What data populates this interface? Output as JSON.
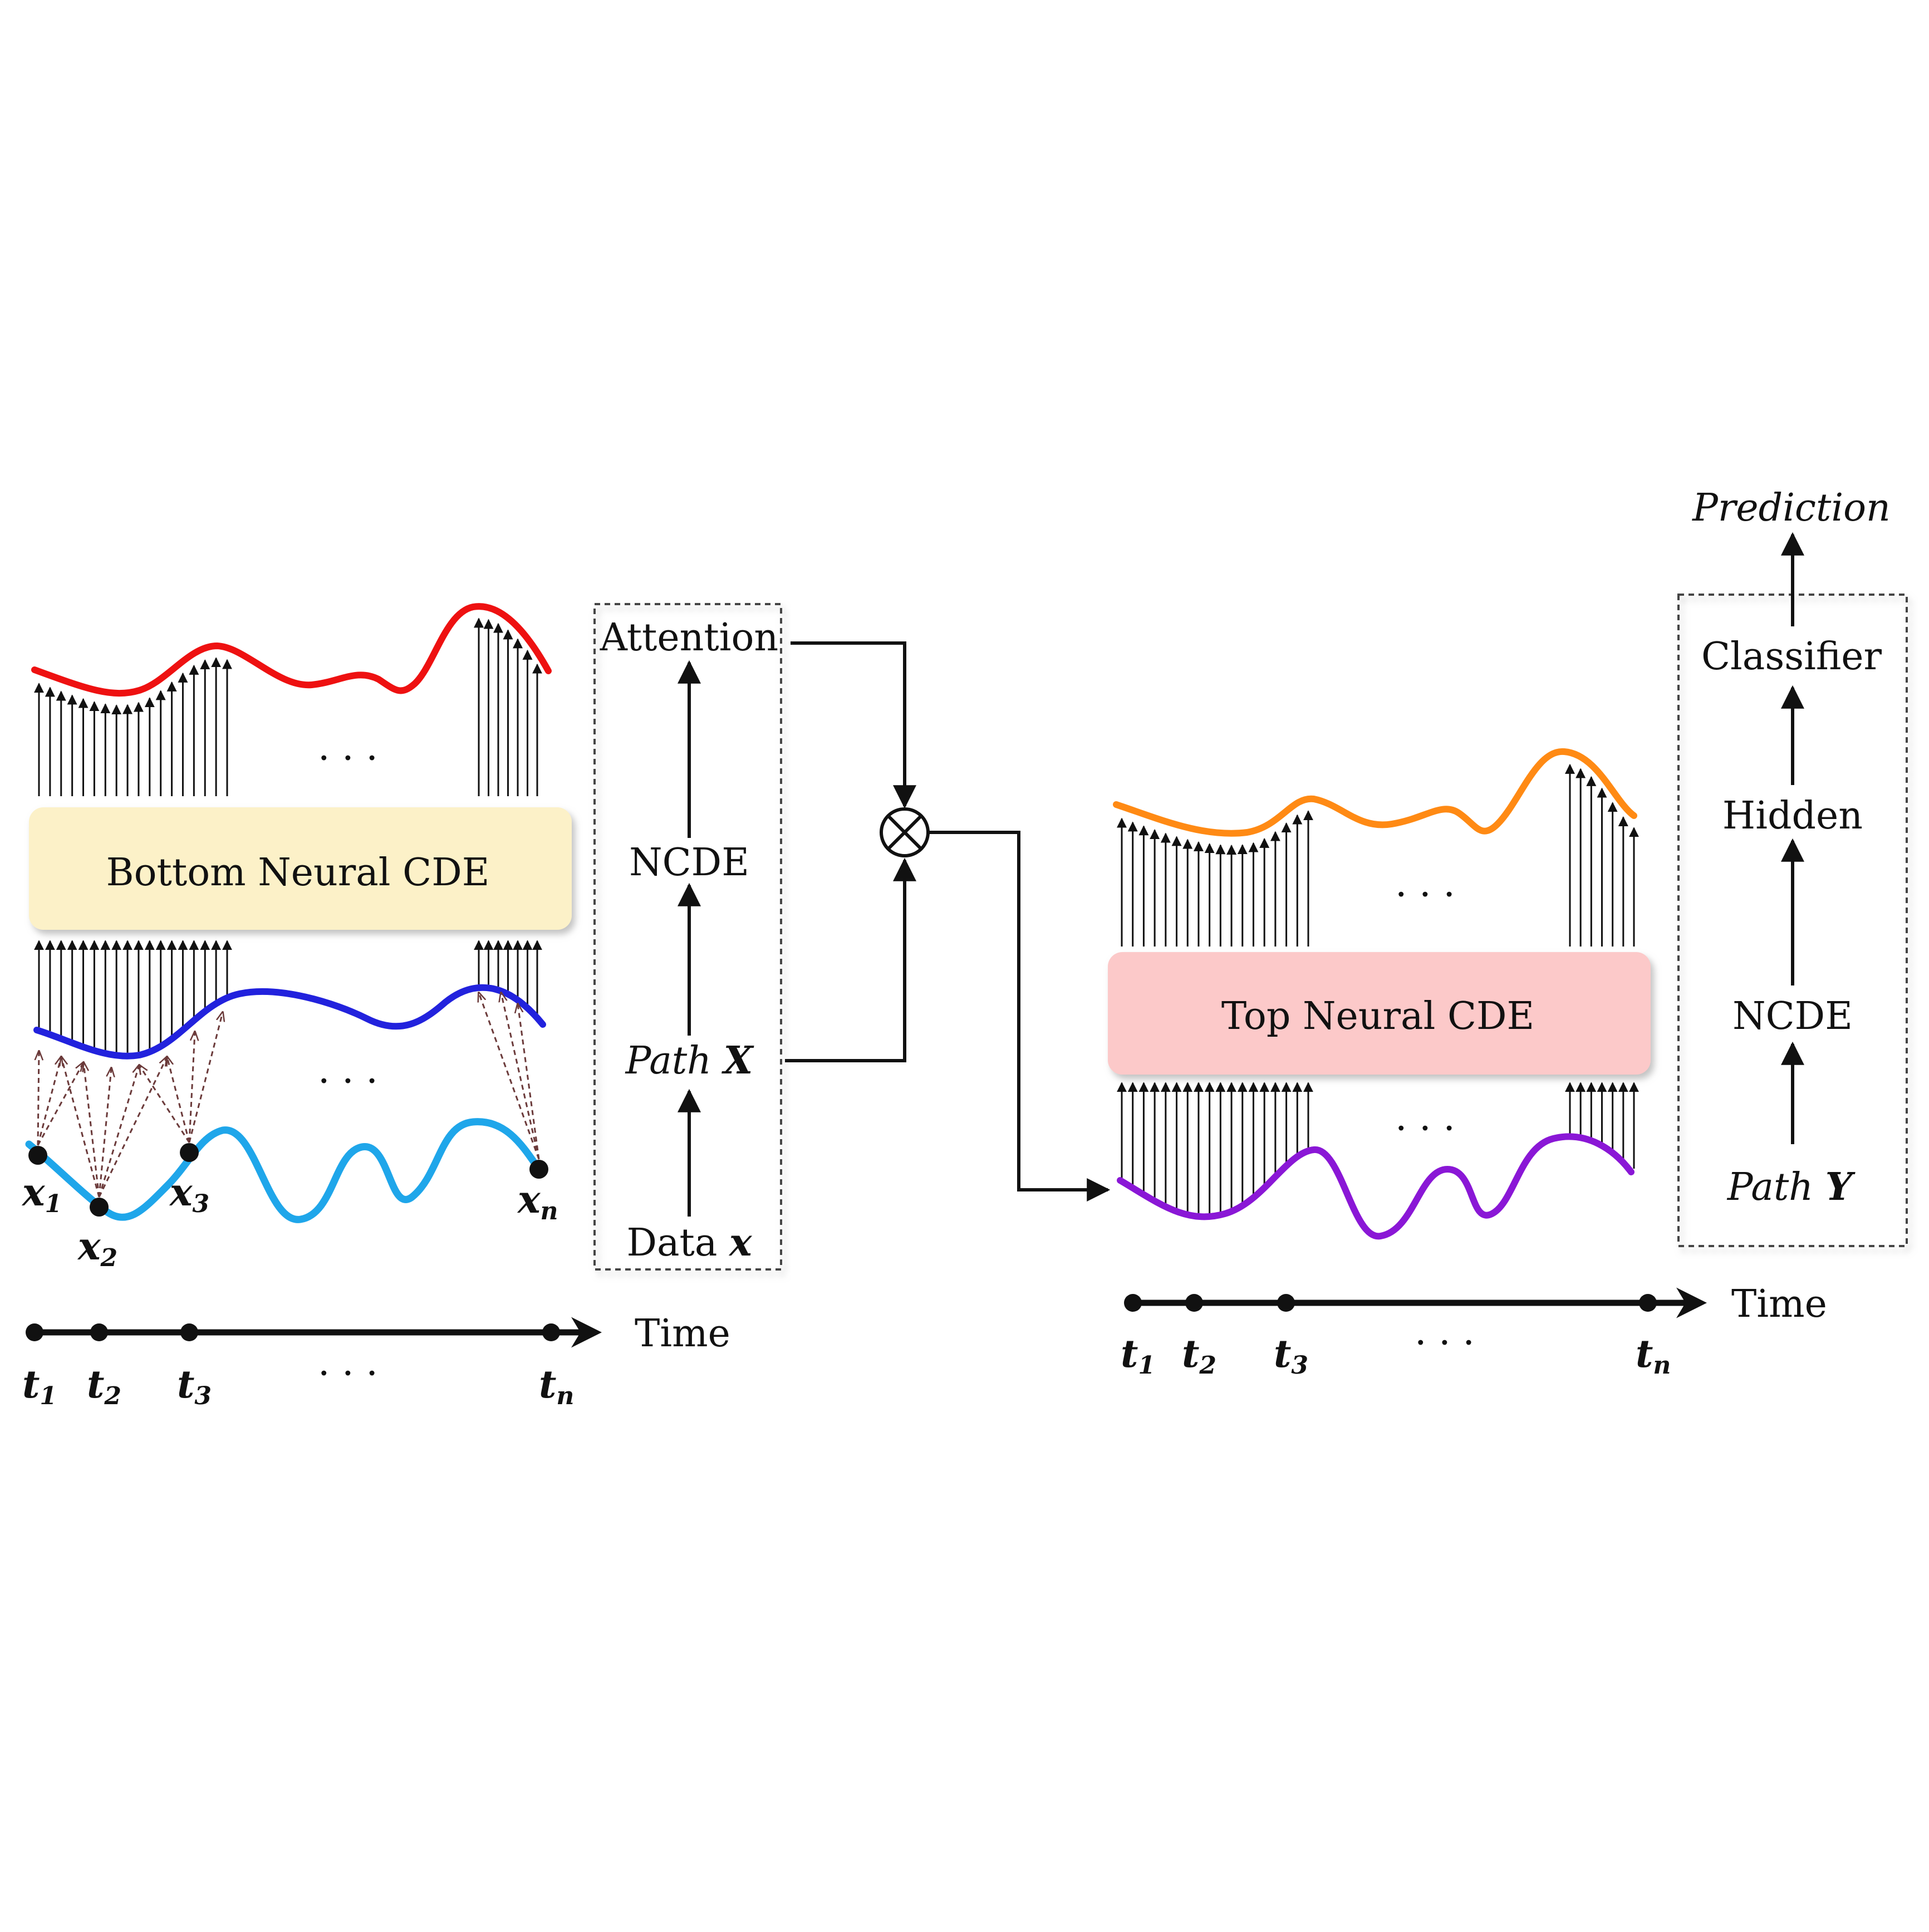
{
  "colors": {
    "ink": "#111111",
    "red_curve": "#ee1111",
    "blue_curve": "#2222dd",
    "lightblue_curve": "#1fa6ea",
    "orange_curve": "#ff8a14",
    "purple_curve": "#8a17d6",
    "bottom_box_fill": "#fcf1c8",
    "top_box_fill": "#fcc9c9",
    "dashed_link": "#6b3a3a"
  },
  "left": {
    "box_label": "Bottom Neural CDE",
    "ellipsis": "· · ·",
    "points": [
      {
        "base": "x",
        "sub": "1"
      },
      {
        "base": "x",
        "sub": "2"
      },
      {
        "base": "x",
        "sub": "3"
      },
      {
        "base": "x",
        "sub": "n"
      }
    ],
    "time_label": "Time",
    "ticks": [
      {
        "base": "t",
        "sub": "1"
      },
      {
        "base": "t",
        "sub": "2"
      },
      {
        "base": "t",
        "sub": "3"
      },
      {
        "base": "t",
        "sub": "n"
      }
    ]
  },
  "flow_left": {
    "attention": "Attention",
    "ncde": "NCDE",
    "path_word": "Path",
    "path_var": "X",
    "data_word": "Data",
    "data_var": "x"
  },
  "mult_symbol": "⊗",
  "right": {
    "box_label": "Top Neural CDE",
    "ellipsis": "· · ·",
    "time_label": "Time",
    "ticks": [
      {
        "base": "t",
        "sub": "1"
      },
      {
        "base": "t",
        "sub": "2"
      },
      {
        "base": "t",
        "sub": "3"
      },
      {
        "base": "t",
        "sub": "n"
      }
    ]
  },
  "flow_right": {
    "prediction": "Prediction",
    "classifier": "Classifier",
    "hidden": "Hidden",
    "ncde": "NCDE",
    "path_word": "Path",
    "path_var": "Y"
  }
}
